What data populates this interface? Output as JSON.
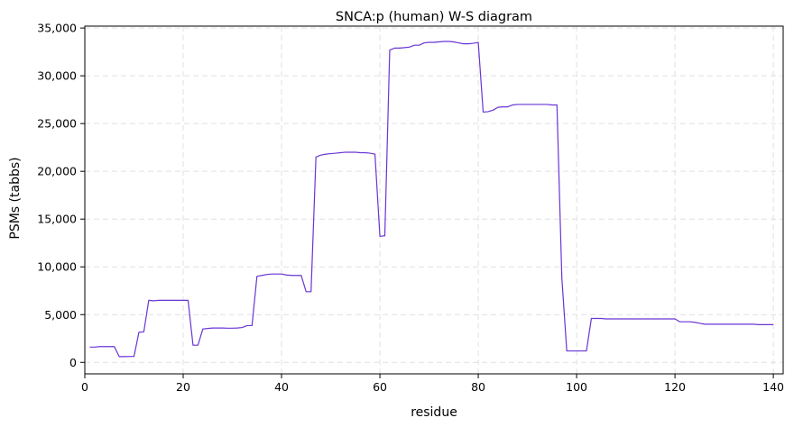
{
  "chart_data": {
    "type": "line",
    "title": "SNCA:p (human) W-S diagram",
    "xlabel": "residue",
    "ylabel": "PSMs (tabbs)",
    "xlim": [
      0,
      142
    ],
    "ylim": [
      -1200,
      35200
    ],
    "xticks": [
      0,
      20,
      40,
      60,
      80,
      100,
      120,
      140
    ],
    "yticks": [
      0,
      5000,
      10000,
      15000,
      20000,
      25000,
      30000,
      35000
    ],
    "yticklabels": [
      "0",
      "5,000",
      "10,000",
      "15,000",
      "20,000",
      "25,000",
      "30,000",
      "35,000"
    ],
    "grid": true,
    "line_color": "#6a35d4",
    "series": [
      {
        "x": [
          1,
          2,
          3,
          4,
          5,
          6,
          7,
          8,
          9,
          10,
          11,
          12,
          13,
          14,
          15,
          16,
          17,
          18,
          19,
          20,
          21,
          22,
          23,
          24,
          25,
          26,
          27,
          28,
          29,
          30,
          31,
          32,
          33,
          34,
          35,
          36,
          37,
          38,
          39,
          40,
          41,
          42,
          43,
          44,
          45,
          46,
          47,
          48,
          49,
          50,
          51,
          52,
          53,
          54,
          55,
          56,
          57,
          58,
          59,
          60,
          61,
          62,
          63,
          64,
          65,
          66,
          67,
          68,
          69,
          70,
          71,
          72,
          73,
          74,
          75,
          76,
          77,
          78,
          79,
          80,
          81,
          82,
          83,
          84,
          85,
          86,
          87,
          88,
          89,
          90,
          91,
          92,
          93,
          94,
          95,
          96,
          97,
          98,
          99,
          100,
          101,
          102,
          103,
          104,
          105,
          106,
          107,
          108,
          109,
          110,
          111,
          112,
          113,
          114,
          115,
          116,
          117,
          118,
          119,
          120,
          121,
          122,
          123,
          124,
          125,
          126,
          127,
          128,
          129,
          130,
          131,
          132,
          133,
          134,
          135,
          136,
          137,
          138,
          139,
          140
        ],
        "values": [
          1600,
          1600,
          1650,
          1650,
          1650,
          1650,
          600,
          600,
          620,
          620,
          3150,
          3200,
          6500,
          6450,
          6500,
          6500,
          6500,
          6500,
          6500,
          6500,
          6500,
          1800,
          1800,
          3500,
          3550,
          3600,
          3600,
          3600,
          3580,
          3580,
          3600,
          3650,
          3850,
          3850,
          9000,
          9100,
          9200,
          9250,
          9250,
          9250,
          9150,
          9100,
          9100,
          9100,
          7400,
          7400,
          21500,
          21700,
          21800,
          21850,
          21900,
          21950,
          22000,
          22000,
          22000,
          21950,
          21950,
          21900,
          21800,
          13200,
          13250,
          32700,
          32900,
          32900,
          32950,
          33000,
          33200,
          33200,
          33450,
          33500,
          33500,
          33550,
          33600,
          33600,
          33550,
          33450,
          33350,
          33350,
          33400,
          33500,
          26200,
          26250,
          26400,
          26700,
          26750,
          26750,
          26950,
          27000,
          27000,
          27000,
          27000,
          27000,
          27000,
          27000,
          26950,
          26950,
          8800,
          1200,
          1200,
          1200,
          1200,
          1200,
          4600,
          4600,
          4600,
          4550,
          4550,
          4550,
          4550,
          4550,
          4550,
          4550,
          4550,
          4550,
          4550,
          4550,
          4550,
          4550,
          4550,
          4550,
          4250,
          4250,
          4250,
          4200,
          4100,
          4000,
          4000,
          4000,
          4000,
          4000,
          4000,
          4000,
          4000,
          4000,
          4000,
          4000,
          3950,
          3950,
          3950,
          3950
        ]
      }
    ]
  }
}
